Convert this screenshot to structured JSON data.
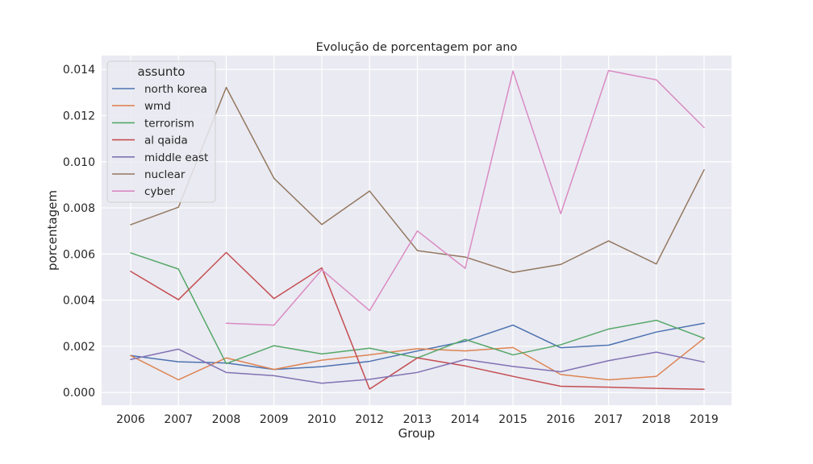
{
  "chart_data": {
    "type": "line",
    "title": "Evolução de porcentagem por ano",
    "xlabel": "Group",
    "ylabel": "porcentagem",
    "categories": [
      "2006",
      "2007",
      "2008",
      "2009",
      "2010",
      "2012",
      "2013",
      "2014",
      "2015",
      "2016",
      "2017",
      "2018",
      "2019"
    ],
    "yticks": [
      "0.000",
      "0.002",
      "0.004",
      "0.006",
      "0.008",
      "0.010",
      "0.012",
      "0.014"
    ],
    "ylim": [
      -0.00055,
      0.0146
    ],
    "grid": true,
    "legend_title": "assunto",
    "legend_position": "top-left",
    "series": [
      {
        "name": "north korea",
        "color": "#4c72b0",
        "values": [
          0.0016,
          0.00133,
          0.00128,
          0.001,
          0.00112,
          0.00135,
          0.0018,
          0.00222,
          0.00292,
          0.00194,
          0.00205,
          0.00262,
          0.003
        ]
      },
      {
        "name": "wmd",
        "color": "#dd8452",
        "values": [
          0.0016,
          0.00055,
          0.0015,
          0.001,
          0.0014,
          0.00163,
          0.0019,
          0.0018,
          0.00195,
          0.00078,
          0.00055,
          0.0007,
          0.00235
        ]
      },
      {
        "name": "terrorism",
        "color": "#55a868",
        "values": [
          0.00605,
          0.00535,
          0.00125,
          0.00203,
          0.00167,
          0.00192,
          0.0015,
          0.0023,
          0.00163,
          0.00207,
          0.00275,
          0.00313,
          0.00235
        ]
      },
      {
        "name": "al qaida",
        "color": "#c44e52",
        "values": [
          0.00525,
          0.00402,
          0.00607,
          0.00407,
          0.0054,
          0.00015,
          0.0015,
          0.00115,
          0.0007,
          0.00027,
          0.00023,
          0.00018,
          0.00014
        ]
      },
      {
        "name": "middle east",
        "color": "#8172b3",
        "values": [
          0.00143,
          0.00188,
          0.00087,
          0.00073,
          0.0004,
          0.00057,
          0.00087,
          0.00143,
          0.00113,
          0.0009,
          0.00138,
          0.00175,
          0.00132
        ]
      },
      {
        "name": "nuclear",
        "color": "#937860",
        "values": [
          0.00727,
          0.00803,
          0.01322,
          0.00928,
          0.00728,
          0.00873,
          0.00615,
          0.00587,
          0.0052,
          0.00555,
          0.00657,
          0.00557,
          0.00965
        ]
      },
      {
        "name": "cyber",
        "color": "#da8bc3",
        "values": [
          null,
          null,
          0.003,
          0.00292,
          0.00532,
          0.00355,
          0.007,
          0.00538,
          0.01393,
          0.00775,
          0.01395,
          0.01355,
          0.01148
        ]
      }
    ]
  }
}
